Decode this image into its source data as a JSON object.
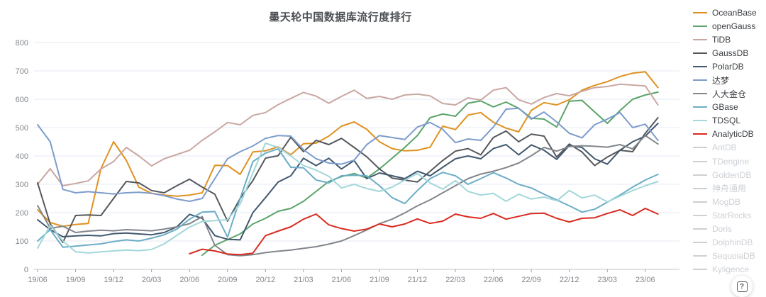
{
  "page": {
    "title": "墨天轮中国数据库流行度排行"
  },
  "help_button": {
    "icon": "question-mark-icon",
    "label": "?"
  },
  "chart_data": {
    "type": "line",
    "title": "墨天轮中国数据库流行度排行",
    "xlabel": "",
    "ylabel": "",
    "ylim": [
      0,
      800
    ],
    "y_ticks": [
      0,
      100,
      200,
      300,
      400,
      500,
      600,
      700,
      800
    ],
    "grid": true,
    "legend_position": "right",
    "x_tick_labels": [
      "19/06",
      "19/09",
      "19/12",
      "20/03",
      "20/06",
      "20/09",
      "20/12",
      "21/03",
      "21/06",
      "21/09",
      "21/12",
      "22/03",
      "22/06",
      "22/09",
      "22/12",
      "23/03",
      "23/06"
    ],
    "months": [
      "19/06",
      "19/07",
      "19/08",
      "19/09",
      "19/10",
      "19/11",
      "19/12",
      "20/01",
      "20/02",
      "20/03",
      "20/04",
      "20/05",
      "20/06",
      "20/07",
      "20/08",
      "20/09",
      "20/10",
      "20/11",
      "20/12",
      "21/01",
      "21/02",
      "21/03",
      "21/04",
      "21/05",
      "21/06",
      "21/07",
      "21/08",
      "21/09",
      "21/10",
      "21/11",
      "21/12",
      "22/01",
      "22/02",
      "22/03",
      "22/04",
      "22/05",
      "22/06",
      "22/07",
      "22/08",
      "22/09",
      "22/10",
      "22/11",
      "22/12",
      "23/01",
      "23/02",
      "23/03",
      "23/04",
      "23/05",
      "23/06",
      "23/07"
    ],
    "style": {
      "grid_color": "#e3eaf3",
      "axis_line_color": "#c2c6cb",
      "tick_color": "#9aa0a6",
      "axis_text_color": "#82878d",
      "inactive_color": "#cdd0d4",
      "title_color": "#4b4e53"
    },
    "series": [
      {
        "name": "OceanBase",
        "color": "#e0911f",
        "active": true,
        "values": [
          210,
          165,
          152,
          158,
          162,
          355,
          450,
          385,
          290,
          268,
          262,
          258,
          262,
          270,
          367,
          366,
          335,
          414,
          418,
          432,
          404,
          443,
          445,
          470,
          505,
          520,
          494,
          450,
          426,
          418,
          420,
          431,
          505,
          493,
          544,
          553,
          519,
          498,
          485,
          561,
          588,
          580,
          598,
          632,
          649,
          662,
          680,
          692,
          697,
          641
        ]
      },
      {
        "name": "openGauss",
        "color": "#5aa469",
        "active": true,
        "values": [
          null,
          null,
          null,
          null,
          null,
          null,
          null,
          null,
          null,
          null,
          null,
          null,
          null,
          50,
          85,
          105,
          125,
          160,
          180,
          205,
          215,
          240,
          275,
          310,
          327,
          338,
          322,
          354,
          392,
          430,
          472,
          535,
          548,
          540,
          586,
          594,
          573,
          590,
          568,
          533,
          530,
          502,
          593,
          596,
          555,
          515,
          560,
          600,
          615,
          625
        ]
      },
      {
        "name": "TiDB",
        "color": "#c9a7a2",
        "active": true,
        "values": [
          300,
          355,
          295,
          303,
          312,
          354,
          380,
          430,
          400,
          365,
          390,
          405,
          420,
          455,
          485,
          518,
          510,
          543,
          553,
          581,
          603,
          624,
          611,
          586,
          610,
          632,
          603,
          610,
          600,
          615,
          618,
          612,
          585,
          580,
          605,
          597,
          632,
          641,
          598,
          583,
          606,
          620,
          612,
          628,
          641,
          645,
          653,
          650,
          647,
          580
        ]
      },
      {
        "name": "GaussDB",
        "color": "#54585d",
        "active": true,
        "values": [
          305,
          160,
          95,
          190,
          192,
          190,
          250,
          310,
          305,
          278,
          270,
          295,
          318,
          290,
          265,
          170,
          250,
          313,
          392,
          401,
          466,
          415,
          455,
          440,
          462,
          430,
          397,
          354,
          322,
          315,
          308,
          346,
          384,
          417,
          426,
          404,
          465,
          488,
          450,
          477,
          470,
          396,
          442,
          414,
          366,
          396,
          420,
          415,
          480,
          535
        ]
      },
      {
        "name": "PolarDB",
        "color": "#41586e",
        "active": true,
        "values": [
          175,
          140,
          115,
          118,
          120,
          118,
          126,
          128,
          125,
          122,
          130,
          150,
          194,
          180,
          119,
          106,
          104,
          200,
          253,
          308,
          330,
          392,
          366,
          392,
          354,
          384,
          320,
          340,
          330,
          320,
          346,
          330,
          360,
          390,
          400,
          390,
          426,
          440,
          404,
          439,
          420,
          388,
          437,
          430,
          390,
          371,
          420,
          450,
          470,
          515
        ]
      },
      {
        "name": "达梦",
        "color": "#7d9ccb",
        "active": true,
        "values": [
          510,
          450,
          282,
          270,
          274,
          270,
          266,
          270,
          272,
          268,
          260,
          248,
          240,
          250,
          320,
          390,
          415,
          435,
          462,
          472,
          470,
          422,
          390,
          375,
          371,
          385,
          440,
          472,
          465,
          458,
          502,
          518,
          494,
          447,
          460,
          455,
          502,
          565,
          568,
          530,
          555,
          520,
          480,
          464,
          510,
          530,
          553,
          500,
          512,
          455
        ]
      },
      {
        "name": "人大金仓",
        "color": "#82868b",
        "active": true,
        "values": [
          225,
          145,
          152,
          130,
          135,
          138,
          136,
          140,
          138,
          136,
          142,
          150,
          161,
          186,
          85,
          52,
          48,
          52,
          59,
          64,
          68,
          74,
          80,
          89,
          100,
          119,
          139,
          161,
          177,
          199,
          224,
          245,
          270,
          295,
          320,
          336,
          346,
          359,
          375,
          401,
          430,
          417,
          433,
          436,
          434,
          431,
          440,
          425,
          472,
          442
        ]
      },
      {
        "name": "GBase",
        "color": "#6cadc6",
        "active": true,
        "values": [
          100,
          140,
          78,
          82,
          86,
          90,
          98,
          104,
          100,
          110,
          122,
          142,
          177,
          202,
          204,
          114,
          250,
          380,
          410,
          425,
          360,
          358,
          315,
          305,
          330,
          332,
          330,
          295,
          253,
          232,
          278,
          320,
          342,
          330,
          300,
          320,
          341,
          322,
          300,
          287,
          265,
          245,
          224,
          202,
          212,
          237,
          262,
          290,
          315,
          335
        ]
      },
      {
        "name": "TDSQL",
        "color": "#a3d7da",
        "active": true,
        "values": [
          75,
          155,
          100,
          62,
          58,
          62,
          65,
          68,
          66,
          70,
          90,
          120,
          149,
          169,
          172,
          175,
          230,
          340,
          445,
          430,
          400,
          366,
          350,
          328,
          287,
          300,
          285,
          275,
          290,
          315,
          338,
          305,
          283,
          313,
          275,
          262,
          268,
          240,
          265,
          248,
          255,
          242,
          278,
          252,
          262,
          238,
          258,
          278,
          295,
          310
        ]
      },
      {
        "name": "AnalyticDB",
        "color": "#d92b20",
        "active": true,
        "values": [
          null,
          null,
          null,
          null,
          null,
          null,
          null,
          null,
          null,
          null,
          null,
          null,
          55,
          71,
          65,
          54,
          52,
          57,
          119,
          135,
          150,
          177,
          195,
          157,
          144,
          135,
          142,
          160,
          150,
          160,
          178,
          162,
          170,
          195,
          185,
          180,
          197,
          177,
          187,
          197,
          198,
          180,
          167,
          180,
          182,
          197,
          210,
          190,
          215,
          195
        ]
      },
      {
        "name": "AntDB",
        "color": "#cdd0d4",
        "active": false,
        "values": []
      },
      {
        "name": "TDengine",
        "color": "#cdd0d4",
        "active": false,
        "values": []
      },
      {
        "name": "GoldenDB",
        "color": "#cdd0d4",
        "active": false,
        "values": []
      },
      {
        "name": "神舟通用",
        "color": "#cdd0d4",
        "active": false,
        "values": []
      },
      {
        "name": "MogDB",
        "color": "#cdd0d4",
        "active": false,
        "values": []
      },
      {
        "name": "StarRocks",
        "color": "#cdd0d4",
        "active": false,
        "values": []
      },
      {
        "name": "Doris",
        "color": "#cdd0d4",
        "active": false,
        "values": []
      },
      {
        "name": "DolphinDB",
        "color": "#cdd0d4",
        "active": false,
        "values": []
      },
      {
        "name": "SequoiaDB",
        "color": "#cdd0d4",
        "active": false,
        "values": []
      },
      {
        "name": "Kyligence",
        "color": "#cdd0d4",
        "active": false,
        "values": []
      }
    ]
  }
}
